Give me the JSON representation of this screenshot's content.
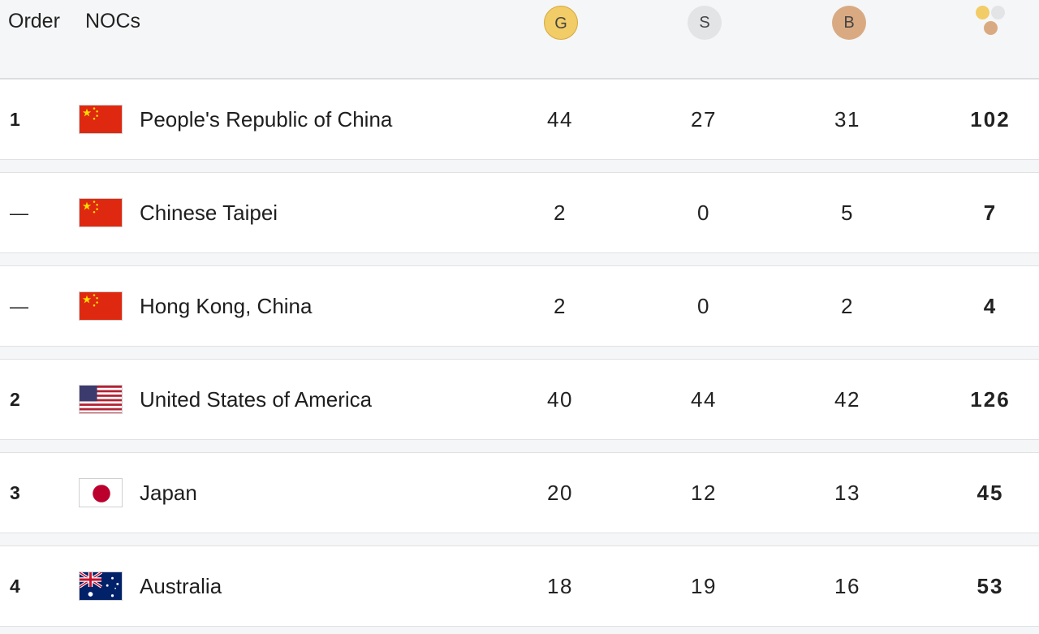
{
  "header": {
    "order_label": "Order",
    "nocs_label": "NOCs",
    "gold_label": "G",
    "silver_label": "S",
    "bronze_label": "B",
    "total_icon": "medals-total-icon"
  },
  "colors": {
    "gold": "#f2cc66",
    "silver": "#e3e4e6",
    "bronze": "#d9aa82"
  },
  "rows": [
    {
      "order": "1",
      "flag": "china-flag-icon",
      "name": "People's Republic of China",
      "gold": "44",
      "silver": "27",
      "bronze": "31",
      "total": "102"
    },
    {
      "order": "—",
      "flag": "china-flag-icon",
      "name": "Chinese Taipei",
      "gold": "2",
      "silver": "0",
      "bronze": "5",
      "total": "7"
    },
    {
      "order": "—",
      "flag": "china-flag-icon",
      "name": "Hong Kong, China",
      "gold": "2",
      "silver": "0",
      "bronze": "2",
      "total": "4"
    },
    {
      "order": "2",
      "flag": "usa-flag-icon",
      "name": "United States of America",
      "gold": "40",
      "silver": "44",
      "bronze": "42",
      "total": "126"
    },
    {
      "order": "3",
      "flag": "japan-flag-icon",
      "name": "Japan",
      "gold": "20",
      "silver": "12",
      "bronze": "13",
      "total": "45"
    },
    {
      "order": "4",
      "flag": "australia-flag-icon",
      "name": "Australia",
      "gold": "18",
      "silver": "19",
      "bronze": "16",
      "total": "53"
    }
  ]
}
